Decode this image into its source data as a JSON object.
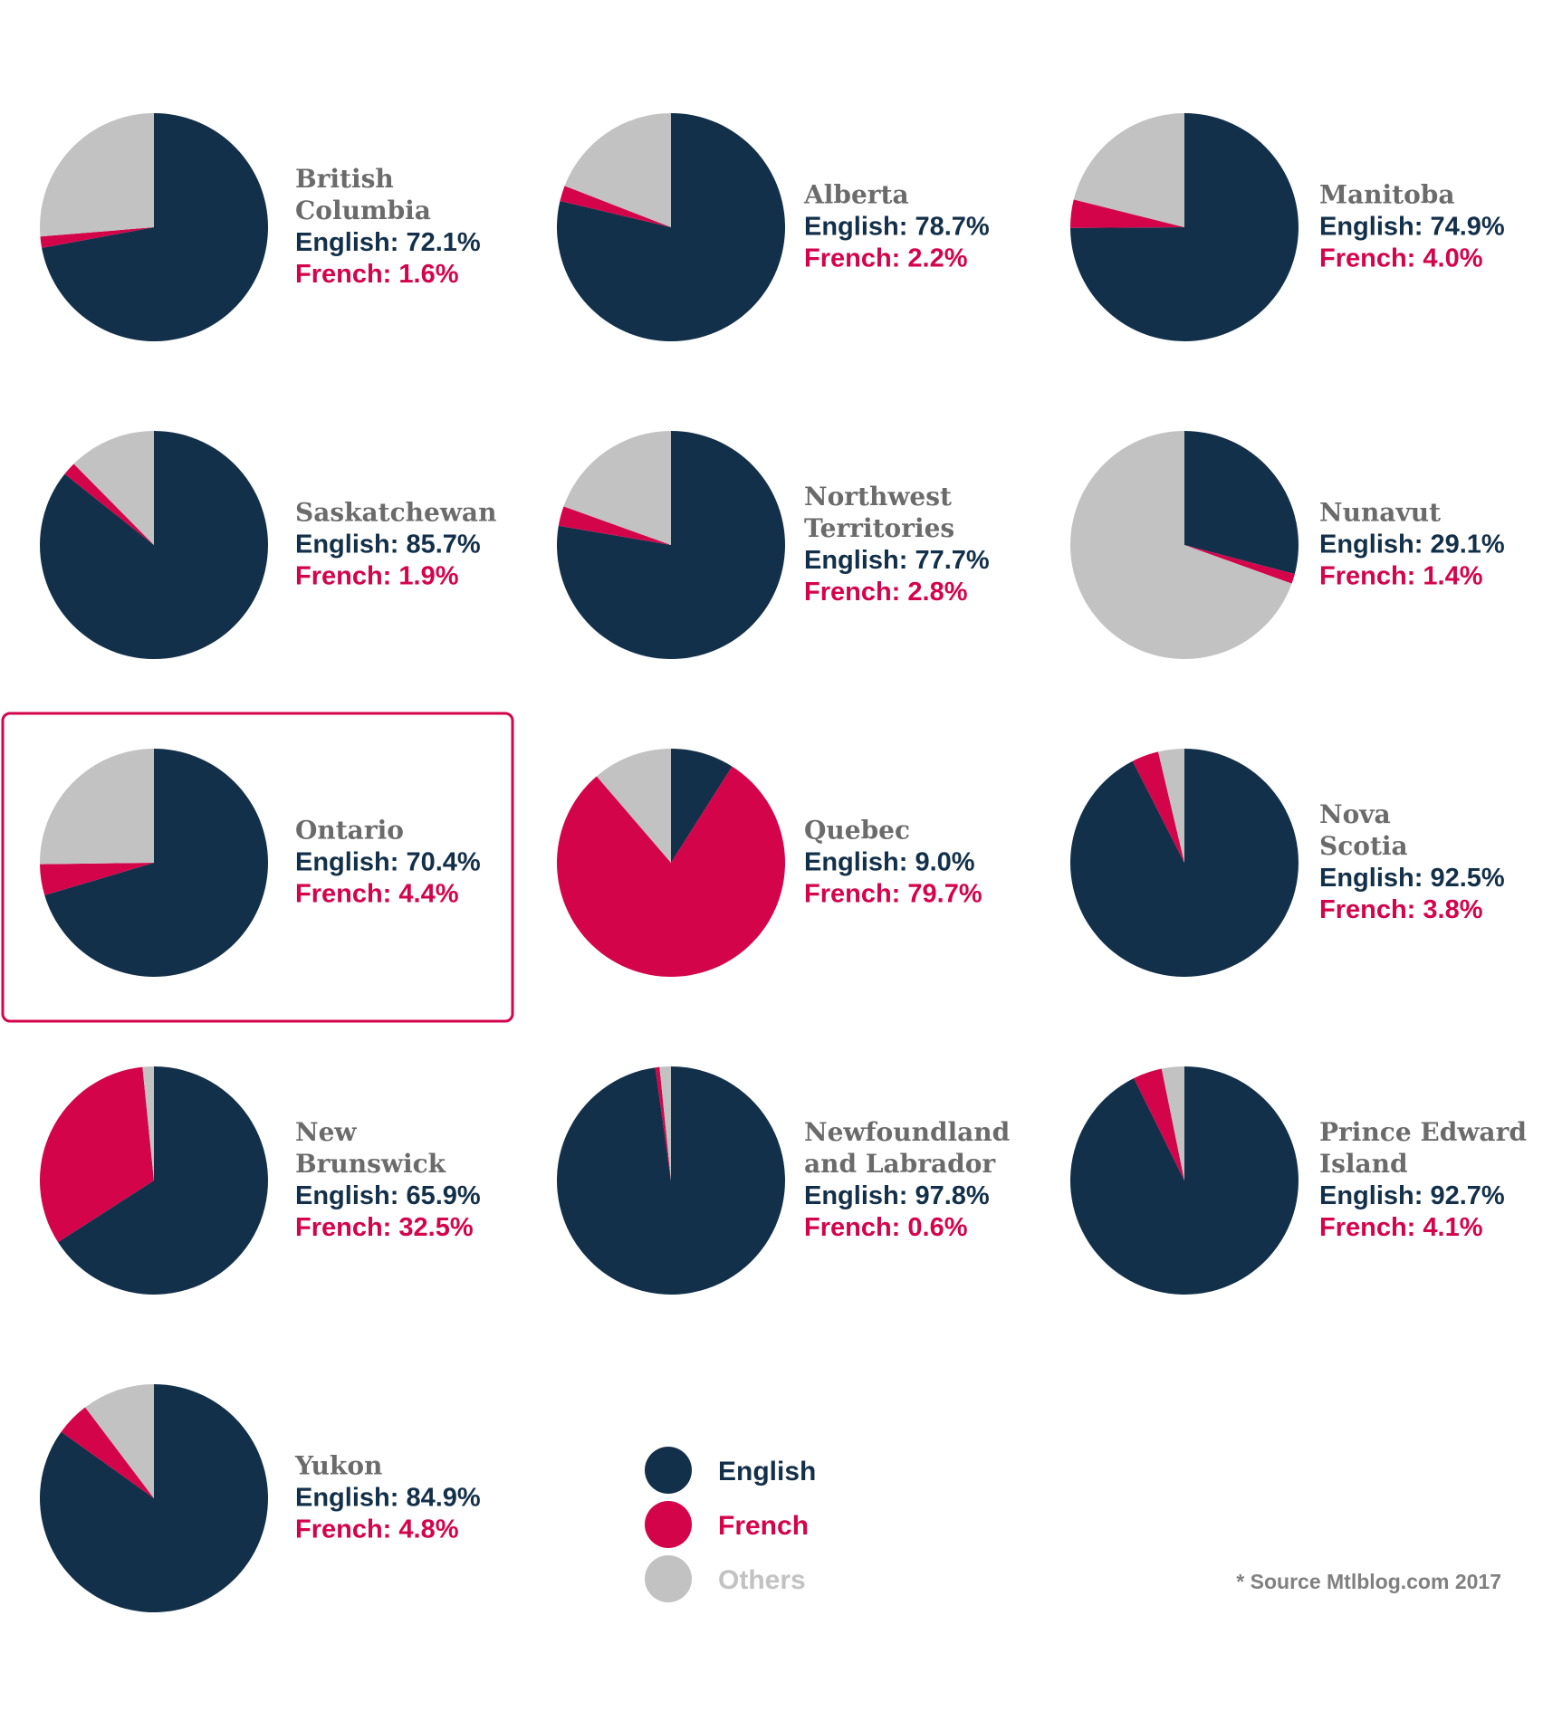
{
  "colors": {
    "english": "#13304a",
    "french": "#d4044a",
    "others": "#c2c2c2",
    "name": "#6b6b6b",
    "highlight": "#d4044a"
  },
  "chart_data": {
    "type": "pie",
    "series_names": [
      "English",
      "French",
      "Others"
    ],
    "provinces": [
      {
        "name_lines": [
          "British",
          "Columbia"
        ],
        "english": 72.1,
        "french": 1.6,
        "english_label": "English: 72.1%",
        "french_label": "French: 1.6%"
      },
      {
        "name_lines": [
          "Alberta"
        ],
        "english": 78.7,
        "french": 2.2,
        "english_label": "English: 78.7%",
        "french_label": "French: 2.2%"
      },
      {
        "name_lines": [
          "Manitoba"
        ],
        "english": 74.9,
        "french": 4.0,
        "english_label": "English: 74.9%",
        "french_label": "French: 4.0%"
      },
      {
        "name_lines": [
          "Saskatchewan"
        ],
        "english": 85.7,
        "french": 1.9,
        "english_label": "English: 85.7%",
        "french_label": "French: 1.9%"
      },
      {
        "name_lines": [
          "Northwest",
          "Territories"
        ],
        "english": 77.7,
        "french": 2.8,
        "english_label": "English: 77.7%",
        "french_label": "French: 2.8%"
      },
      {
        "name_lines": [
          "Nunavut"
        ],
        "english": 29.1,
        "french": 1.4,
        "english_label": "English: 29.1%",
        "french_label": "French: 1.4%"
      },
      {
        "name_lines": [
          "Ontario"
        ],
        "english": 70.4,
        "french": 4.4,
        "english_label": "English: 70.4%",
        "french_label": "French: 4.4%",
        "highlighted": true
      },
      {
        "name_lines": [
          "Quebec"
        ],
        "english": 9.0,
        "french": 79.7,
        "english_label": "English: 9.0%",
        "french_label": "French: 79.7%"
      },
      {
        "name_lines": [
          "Nova",
          "Scotia"
        ],
        "english": 92.5,
        "french": 3.8,
        "english_label": "English: 92.5%",
        "french_label": "French: 3.8%"
      },
      {
        "name_lines": [
          "New",
          "Brunswick"
        ],
        "english": 65.9,
        "french": 32.5,
        "english_label": "English: 65.9%",
        "french_label": "French: 32.5%"
      },
      {
        "name_lines": [
          "Newfoundland",
          "and Labrador"
        ],
        "english": 97.8,
        "french": 0.6,
        "english_label": "English: 97.8%",
        "french_label": "French: 0.6%"
      },
      {
        "name_lines": [
          "Prince Edward",
          "Island"
        ],
        "english": 92.7,
        "french": 4.1,
        "english_label": "English: 92.7%",
        "french_label": "French: 4.1%"
      },
      {
        "name_lines": [
          "Yukon"
        ],
        "english": 84.9,
        "french": 4.8,
        "english_label": "English: 84.9%",
        "french_label": "French: 4.8%"
      }
    ]
  },
  "legend": [
    {
      "label": "English",
      "key": "english"
    },
    {
      "label": "French",
      "key": "french"
    },
    {
      "label": "Others",
      "key": "others"
    }
  ],
  "source": "* Source Mtlblog.com 2017"
}
